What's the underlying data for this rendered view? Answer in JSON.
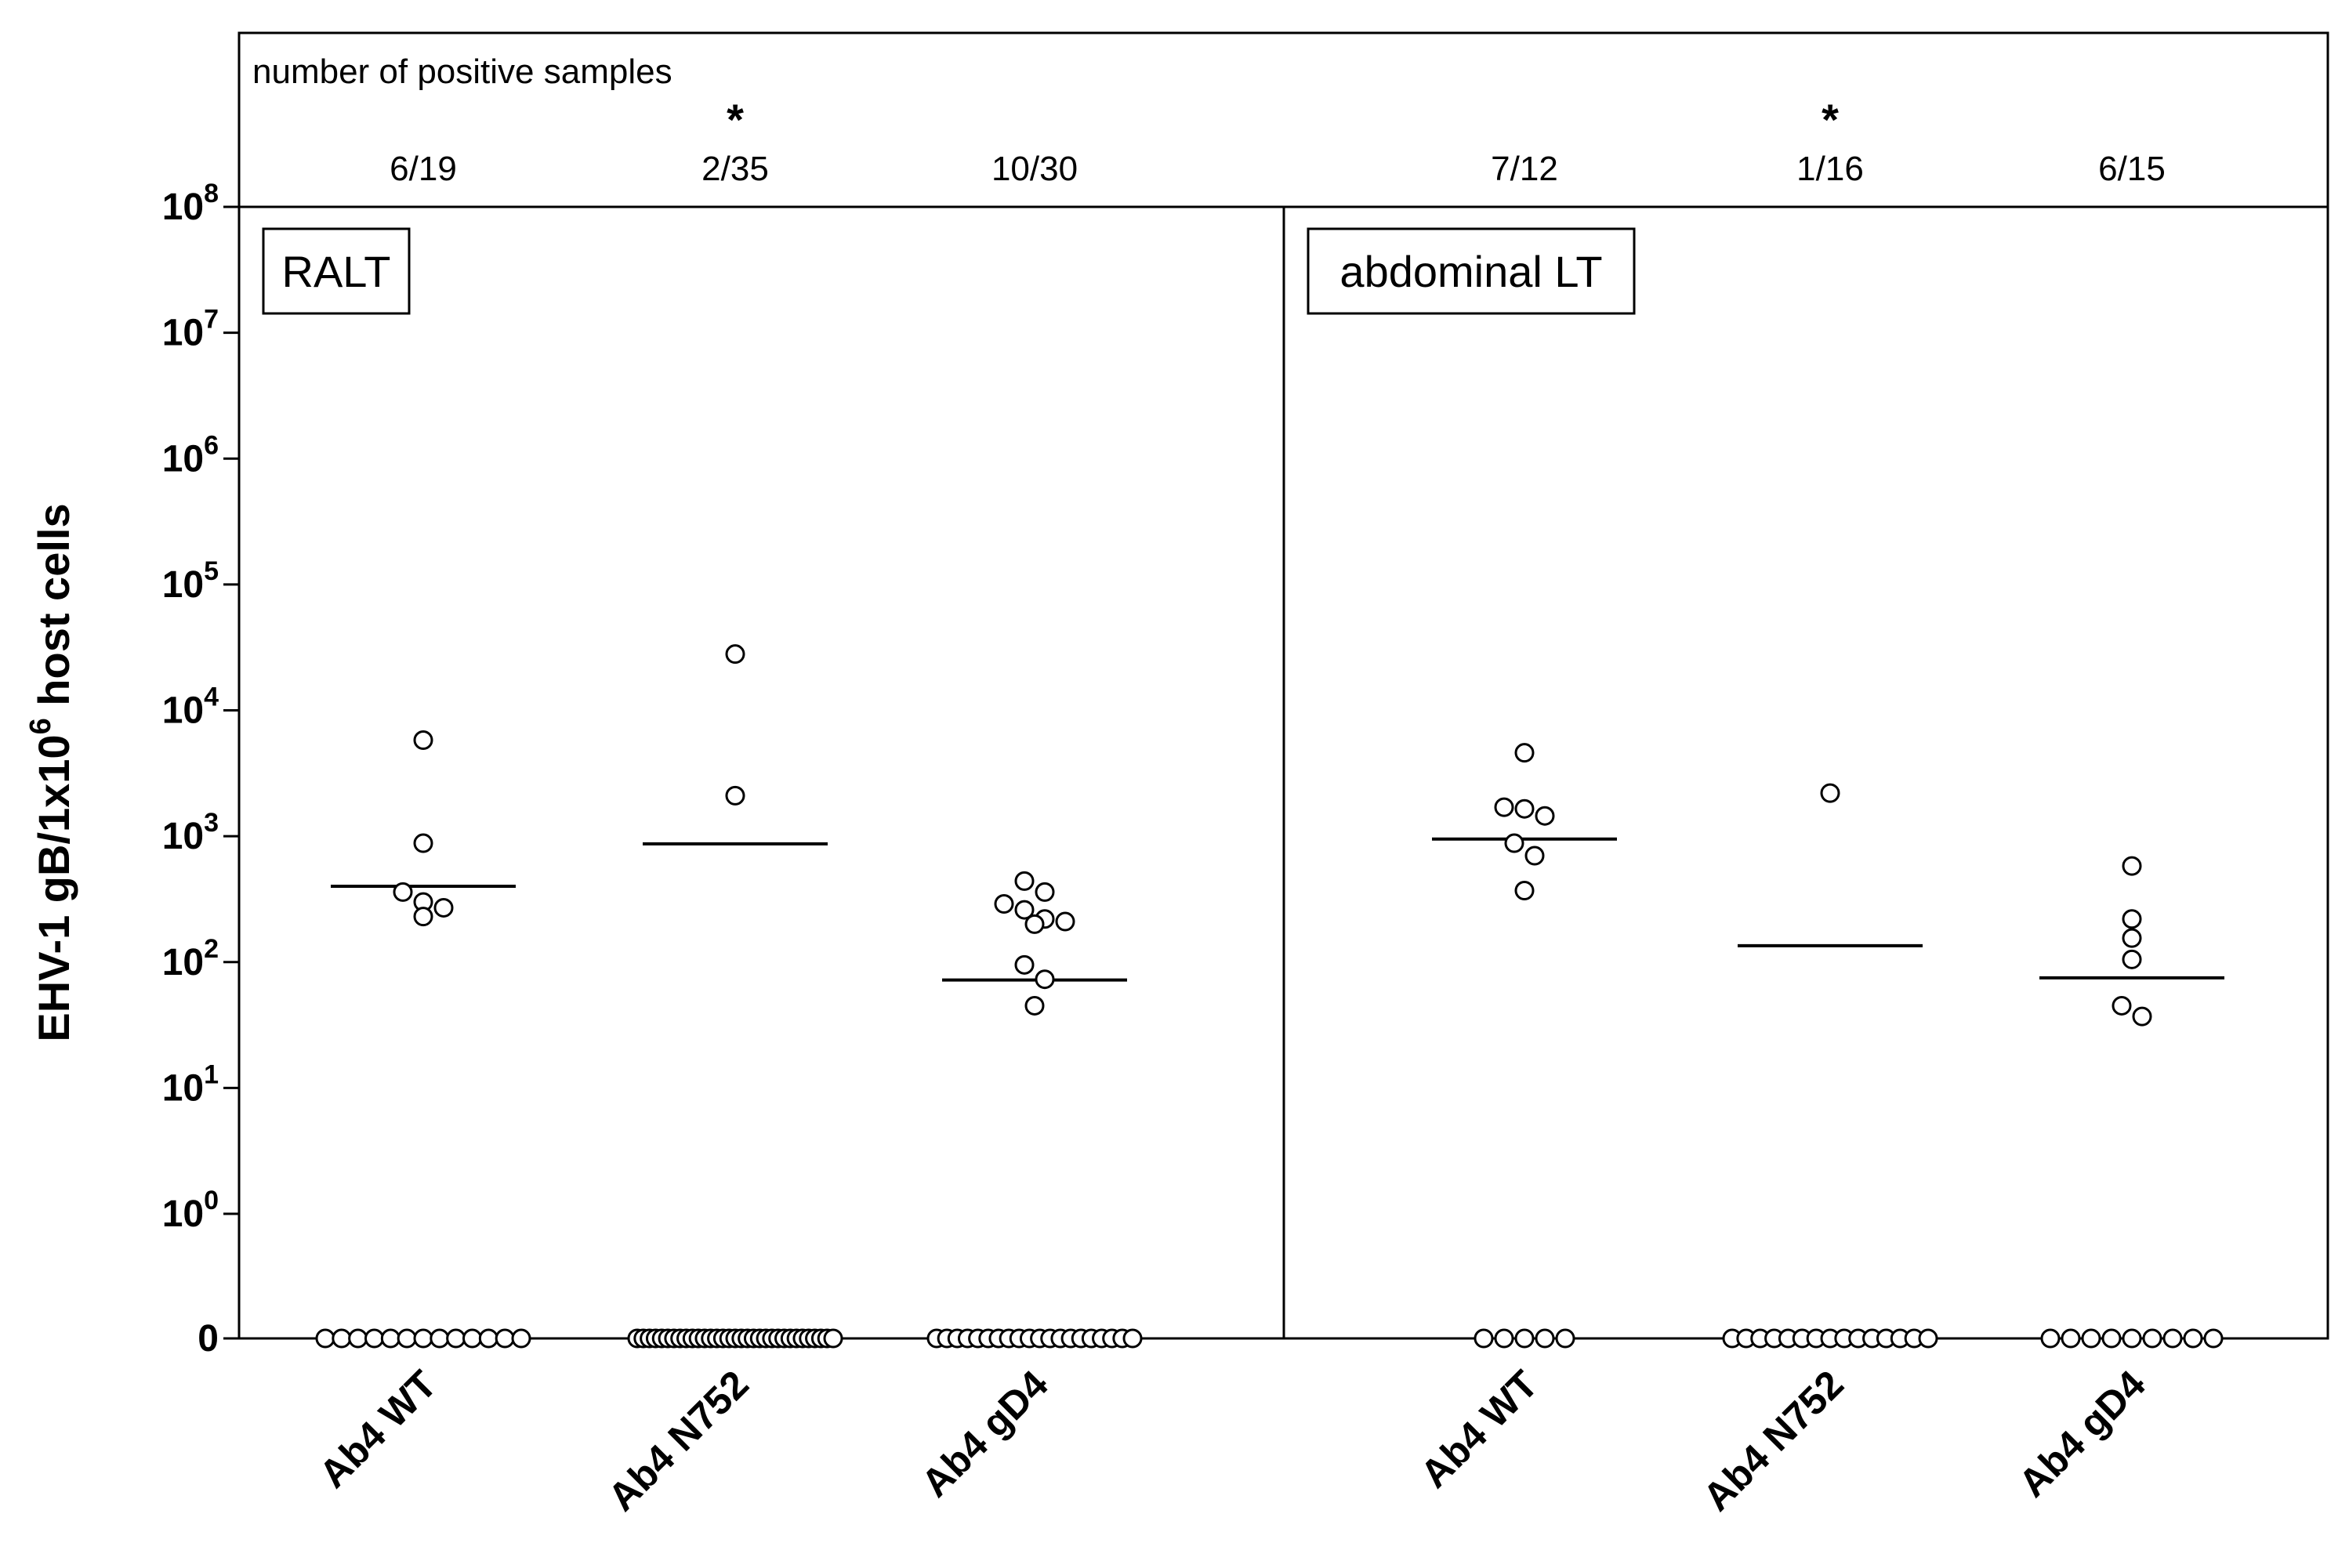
{
  "chart_data": {
    "type": "scatter",
    "ylabel": "EHV-1 gB/1x10^6 host cells",
    "ylabel_parts": {
      "pre": "EHV-1 gB/1x10",
      "sup": "6",
      "post": " host cells"
    },
    "yscale": "log10 with zero baseline",
    "ylim": [
      0,
      100000000
    ],
    "y_ticks": [
      {
        "label": "0",
        "base": "0",
        "exp": ""
      },
      {
        "label": "10^0",
        "base": "10",
        "exp": "0"
      },
      {
        "label": "10^1",
        "base": "10",
        "exp": "1"
      },
      {
        "label": "10^2",
        "base": "10",
        "exp": "2"
      },
      {
        "label": "10^3",
        "base": "10",
        "exp": "3"
      },
      {
        "label": "10^4",
        "base": "10",
        "exp": "4"
      },
      {
        "label": "10^5",
        "base": "10",
        "exp": "5"
      },
      {
        "label": "10^6",
        "base": "10",
        "exp": "6"
      },
      {
        "label": "10^7",
        "base": "10",
        "exp": "7"
      },
      {
        "label": "10^8",
        "base": "10",
        "exp": "8"
      }
    ],
    "header_title": "number of positive samples",
    "panels": [
      {
        "title": "RALT",
        "groups": [
          {
            "category": "Ab4 WT",
            "positive": "6/19",
            "significant": false,
            "median": 400,
            "values": [
              5800,
              880,
              360,
              300,
              270,
              230
            ],
            "zero_count": 13
          },
          {
            "category": "Ab4 N752",
            "positive": "2/35",
            "significant": true,
            "median": 870,
            "values": [
              28000,
              2100
            ],
            "zero_count": 33
          },
          {
            "category": "Ab4 gD4",
            "positive": "10/30",
            "significant": false,
            "median": 72,
            "values": [
              440,
              360,
              290,
              260,
              220,
              210,
              200,
              95,
              73,
              45
            ],
            "zero_count": 20
          }
        ]
      },
      {
        "title": "abdominal LT",
        "groups": [
          {
            "category": "Ab4 WT",
            "positive": "7/12",
            "significant": false,
            "median": 950,
            "values": [
              4600,
              1700,
              1650,
              1450,
              880,
              700,
              370
            ],
            "zero_count": 5
          },
          {
            "category": "Ab4 N752",
            "positive": "1/16",
            "significant": true,
            "median": 135,
            "values": [
              2200
            ],
            "zero_count": 15
          },
          {
            "category": "Ab4 gD4",
            "positive": "6/15",
            "significant": false,
            "median": 75,
            "values": [
              580,
              220,
              155,
              105,
              45,
              37
            ],
            "zero_count": 9
          }
        ]
      }
    ],
    "significance_marker": "*"
  }
}
